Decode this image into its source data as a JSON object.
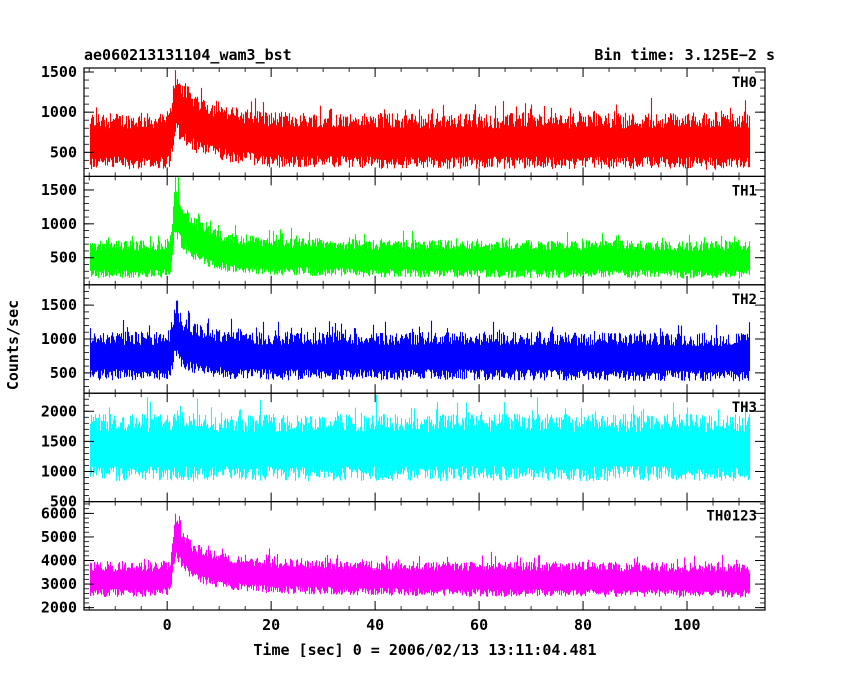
{
  "header": {
    "title": "ae060213131104_wam3_bst",
    "bin_time": "Bin time: 3.125E−2 s"
  },
  "chart_data": {
    "type": "line",
    "xlabel": "Time [sec] 0 = 2006/02/13 13:11:04.481",
    "ylabel": "Counts/sec",
    "xlim": [
      -16,
      115
    ],
    "xticks": [
      0,
      20,
      40,
      60,
      80,
      100
    ],
    "x_tick_labels": [
      "0",
      "20",
      "40",
      "60",
      "80",
      "100"
    ],
    "data_range": [
      -15,
      112
    ],
    "grid": false,
    "panels": [
      {
        "name": "TH0",
        "color": "#ff0000",
        "ylim": [
          200,
          1550
        ],
        "yticks": [
          500,
          1000,
          1500
        ],
        "y_tick_labels": [
          "500",
          "1000",
          "1500"
        ],
        "envelope": {
          "t": [
            -15,
            -1,
            0.5,
            1.5,
            3,
            5,
            8,
            12,
            20,
            40,
            60,
            80,
            112
          ],
          "mean": [
            640,
            640,
            670,
            1150,
            980,
            880,
            800,
            720,
            660,
            640,
            640,
            640,
            640
          ],
          "halfwidth": [
            350,
            350,
            380,
            430,
            410,
            380,
            360,
            350,
            350,
            350,
            350,
            350,
            360
          ]
        }
      },
      {
        "name": "TH1",
        "color": "#00ff00",
        "ylim": [
          100,
          1700
        ],
        "yticks": [
          500,
          1000,
          1500
        ],
        "y_tick_labels": [
          "500",
          "1000",
          "1500"
        ],
        "envelope": {
          "t": [
            -15,
            -1,
            0.5,
            1.5,
            3,
            5,
            8,
            12,
            20,
            40,
            60,
            80,
            112
          ],
          "mean": [
            480,
            480,
            520,
            1250,
            950,
            780,
            660,
            570,
            520,
            490,
            480,
            480,
            470
          ],
          "halfwidth": [
            280,
            280,
            300,
            420,
            360,
            320,
            300,
            290,
            280,
            280,
            280,
            280,
            280
          ]
        }
      },
      {
        "name": "TH2",
        "color": "#0000ff",
        "ylim": [
          200,
          1800
        ],
        "yticks": [
          500,
          1000,
          1500
        ],
        "y_tick_labels": [
          "500",
          "1000",
          "1500"
        ],
        "envelope": {
          "t": [
            -15,
            -1,
            0.5,
            1.5,
            3,
            5,
            8,
            12,
            20,
            40,
            60,
            80,
            112
          ],
          "mean": [
            750,
            750,
            790,
            1150,
            930,
            860,
            810,
            770,
            750,
            750,
            750,
            740,
            730
          ],
          "halfwidth": [
            360,
            360,
            380,
            460,
            400,
            380,
            370,
            360,
            360,
            360,
            360,
            360,
            360
          ]
        }
      },
      {
        "name": "TH3",
        "color": "#00ffff",
        "ylim": [
          500,
          2300
        ],
        "yticks": [
          500,
          1000,
          1500,
          2000
        ],
        "y_tick_labels": [
          "500",
          "1000",
          "1500",
          "2000"
        ],
        "envelope": {
          "t": [
            -15,
            -1,
            0.5,
            1.5,
            3,
            5,
            8,
            12,
            20,
            40,
            60,
            80,
            112
          ],
          "mean": [
            1400,
            1400,
            1400,
            1420,
            1410,
            1400,
            1400,
            1400,
            1400,
            1400,
            1400,
            1400,
            1400
          ],
          "halfwidth": [
            560,
            560,
            580,
            600,
            580,
            570,
            560,
            560,
            560,
            560,
            560,
            560,
            560
          ]
        }
      },
      {
        "name": "TH0123",
        "color": "#ff00ff",
        "ylim": [
          1900,
          6500
        ],
        "yticks": [
          2000,
          3000,
          4000,
          5000,
          6000
        ],
        "y_tick_labels": [
          "2000",
          "3000",
          "4000",
          "5000",
          "6000"
        ],
        "envelope": {
          "t": [
            -15,
            -1,
            0.5,
            1.5,
            3,
            5,
            8,
            12,
            20,
            40,
            60,
            80,
            112
          ],
          "mean": [
            3200,
            3200,
            3300,
            5100,
            4400,
            3950,
            3700,
            3500,
            3350,
            3250,
            3200,
            3200,
            3150
          ],
          "halfwidth": [
            750,
            750,
            780,
            1000,
            900,
            820,
            780,
            760,
            750,
            750,
            750,
            750,
            750
          ]
        }
      }
    ]
  }
}
